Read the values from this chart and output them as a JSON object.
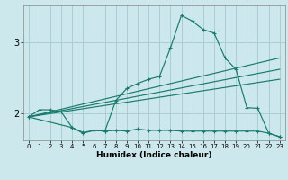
{
  "title": "",
  "xlabel": "Humidex (Indice chaleur)",
  "bg_color": "#cce8ed",
  "line_color": "#1a7a6e",
  "grid_color": "#aacdd4",
  "xlim": [
    -0.5,
    23.5
  ],
  "ylim": [
    1.62,
    3.52
  ],
  "yticks": [
    2,
    3
  ],
  "xticks": [
    0,
    1,
    2,
    3,
    4,
    5,
    6,
    7,
    8,
    9,
    10,
    11,
    12,
    13,
    14,
    15,
    16,
    17,
    18,
    19,
    20,
    21,
    22,
    23
  ],
  "line1_x": [
    0,
    1,
    2,
    3,
    4,
    5,
    6,
    7,
    8,
    9,
    10,
    11,
    12,
    13,
    14,
    15,
    16,
    17,
    18,
    19,
    20,
    21,
    22,
    23
  ],
  "line1_y": [
    1.95,
    2.05,
    2.05,
    2.02,
    1.8,
    1.72,
    1.76,
    1.75,
    2.18,
    2.35,
    2.42,
    2.48,
    2.52,
    2.92,
    3.38,
    3.3,
    3.18,
    3.13,
    2.78,
    2.62,
    2.08,
    2.07,
    1.72,
    1.67
  ],
  "line2_x": [
    0,
    23
  ],
  "line2_y": [
    1.95,
    2.78
  ],
  "line3_x": [
    0,
    23
  ],
  "line3_y": [
    1.95,
    2.62
  ],
  "line4_x": [
    0,
    23
  ],
  "line4_y": [
    1.95,
    2.48
  ],
  "line5_x": [
    0,
    4,
    5,
    6,
    7,
    8,
    9,
    10,
    11,
    12,
    13,
    14,
    15,
    16,
    17,
    18,
    19,
    20,
    21,
    22,
    23
  ],
  "line5_y": [
    1.95,
    1.8,
    1.73,
    1.76,
    1.75,
    1.76,
    1.75,
    1.78,
    1.76,
    1.76,
    1.76,
    1.75,
    1.75,
    1.75,
    1.75,
    1.75,
    1.75,
    1.75,
    1.75,
    1.72,
    1.67
  ]
}
